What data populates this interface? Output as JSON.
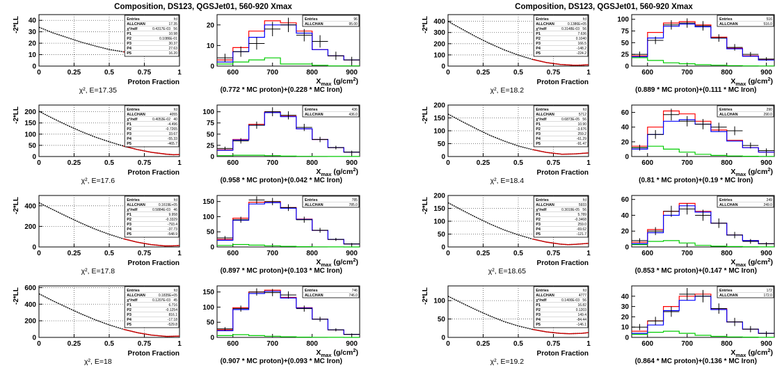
{
  "titles": [
    "Composition, DS123, QGSJet01, 560-920 Xmax",
    "Composition, DS123, QGSJet01, 560-920 Xmax"
  ],
  "colors": {
    "frame": "#000000",
    "fit": "#cc0000",
    "data": "#000000",
    "mc_total": "#ff0000",
    "mc_proton": "#0000ff",
    "mc_iron": "#00cc00",
    "grid": "#555555"
  },
  "llh_axis": {
    "xlabel": "Proton Fraction",
    "ylabel": "-2*LL",
    "xticks": [
      "0",
      "0.25",
      "0.5",
      "0.75",
      "1"
    ]
  },
  "xmax_axis": {
    "xlabel": "X",
    "xlabel_sub": "max",
    "xlabel_unit": "(g/cm",
    "xlabel_sup": "2",
    "xlabel_close": ")",
    "xticks": [
      "600",
      "700",
      "800",
      "900"
    ]
  },
  "xmax_bins": [
    560,
    600,
    640,
    680,
    720,
    760,
    800,
    840,
    880,
    920
  ],
  "stats_rows": {
    "entries": "Entries",
    "allchan": "ALLCHAN",
    "chi2": "χ²/ndf",
    "params": [
      "P1",
      "P2",
      "P3",
      "P4",
      "P5"
    ]
  },
  "chart_data": [
    {
      "type": "line",
      "panel": "llh",
      "column": "left",
      "row": 1,
      "ylim": [
        0,
        45
      ],
      "yticks": [
        "0",
        "10",
        "20",
        "30",
        "40"
      ],
      "x": [
        0,
        0.1,
        0.2,
        0.3,
        0.4,
        0.5,
        0.6,
        0.7,
        0.77,
        0.85,
        0.9,
        1.0
      ],
      "y": [
        34,
        29,
        25,
        21,
        17.6,
        14.5,
        12.5,
        11.2,
        11,
        11.3,
        12,
        14
      ],
      "caption": "χ², E=17.35",
      "stats": {
        "entries": "fcl",
        "allchan": "17.35",
        "chi2": "0.4317E-03",
        "ndf": "56",
        "p": [
          "10.98",
          "0.1086E-01",
          "30.37",
          "27.63",
          "16.20"
        ]
      }
    },
    {
      "type": "bar",
      "panel": "xmax",
      "column": "left",
      "row": 1,
      "ylim": [
        0,
        25
      ],
      "yticks": [
        "0",
        "10",
        "20"
      ],
      "data": [
        4,
        7,
        11,
        18,
        20,
        15,
        12,
        5,
        3
      ],
      "errors": [
        2,
        2.5,
        3,
        3.5,
        3.5,
        3,
        3,
        2,
        1.5
      ],
      "mc_total": [
        3,
        9,
        17,
        22,
        21,
        17,
        8,
        5,
        3
      ],
      "mc_proton": [
        2,
        7,
        14,
        20,
        20,
        16,
        8,
        5,
        3
      ],
      "mc_iron": [
        1,
        2,
        3,
        4,
        1,
        1,
        0.4,
        0.1,
        0.1
      ],
      "caption": "(0.772 * MC proton)+(0.228 * MC Iron)",
      "stats": {
        "entries": "96",
        "allchan": "95.00"
      }
    },
    {
      "type": "line",
      "panel": "llh",
      "column": "right",
      "row": 1,
      "ylim": [
        0,
        460
      ],
      "yticks": [
        "0",
        "100",
        "200",
        "300",
        "400"
      ],
      "x": [
        0,
        0.1,
        0.2,
        0.3,
        0.4,
        0.5,
        0.6,
        0.7,
        0.8,
        0.889,
        0.95,
        1.0
      ],
      "y": [
        400,
        330,
        262,
        200,
        145,
        98,
        60,
        32,
        14,
        8,
        9,
        12
      ],
      "caption": "χ², E=18.2",
      "stats": {
        "entries": "fcl",
        "allchan": "0.1386E+05",
        "chi2": "0.3148E-03",
        "ndf": "56",
        "p": [
          "7.636",
          "0.1040",
          "166.5",
          "-148.2",
          "-224.2"
        ]
      }
    },
    {
      "type": "bar",
      "panel": "xmax",
      "column": "right",
      "row": 1,
      "ylim": [
        0,
        110
      ],
      "yticks": [
        "0",
        "25",
        "50",
        "75",
        "100"
      ],
      "data": [
        25,
        55,
        88,
        92,
        86,
        60,
        40,
        25,
        15
      ],
      "errors": [
        6,
        8,
        10,
        10,
        10,
        8,
        7,
        5,
        4
      ],
      "mc_total": [
        22,
        72,
        92,
        95,
        88,
        62,
        38,
        22,
        14
      ],
      "mc_proton": [
        20,
        60,
        85,
        90,
        84,
        60,
        37,
        21,
        13
      ],
      "mc_iron": [
        18,
        12,
        7,
        5,
        3,
        2,
        1,
        0.5,
        0.3
      ],
      "caption": "(0.889 * MC proton)+(0.111 * MC Iron)",
      "stats": {
        "entries": "516",
        "allchan": "516.0"
      }
    },
    {
      "type": "line",
      "panel": "llh",
      "column": "left",
      "row": 2,
      "ylim": [
        0,
        230
      ],
      "yticks": [
        "0",
        "50",
        "100",
        "150",
        "200"
      ],
      "x": [
        0,
        0.1,
        0.2,
        0.3,
        0.4,
        0.5,
        0.6,
        0.7,
        0.8,
        0.9,
        0.958,
        1.0
      ],
      "y": [
        202,
        170,
        140,
        112,
        87,
        66,
        47,
        31,
        19,
        11,
        8,
        9
      ],
      "caption": "χ², E=17.6",
      "stats": {
        "entries": "fcl",
        "allchan": "4055",
        "chi2": "0.4053E-02",
        "ndf": "40",
        "p": [
          "-4.496",
          "-0.7265",
          "33.67",
          "-55.33",
          "-465.7"
        ]
      }
    },
    {
      "type": "bar",
      "panel": "xmax",
      "column": "left",
      "row": 2,
      "ylim": [
        0,
        115
      ],
      "yticks": [
        "0",
        "25",
        "50",
        "75",
        "100"
      ],
      "data": [
        18,
        35,
        70,
        100,
        92,
        65,
        38,
        20,
        10
      ],
      "errors": [
        4,
        6,
        8,
        10,
        9,
        8,
        6,
        4,
        3
      ],
      "mc_total": [
        15,
        38,
        72,
        100,
        90,
        62,
        38,
        20,
        10
      ],
      "mc_proton": [
        14,
        37,
        70,
        98,
        89,
        62,
        38,
        20,
        10
      ],
      "mc_iron": [
        2,
        3,
        3,
        2,
        1,
        0.5,
        0.3,
        0.2,
        0.1
      ],
      "caption": "(0.958 * MC proton)+(0.042 * MC Iron)",
      "stats": {
        "entries": "436",
        "allchan": "436.0"
      }
    },
    {
      "type": "line",
      "panel": "llh",
      "column": "right",
      "row": 2,
      "ylim": [
        0,
        200
      ],
      "yticks": [
        "0",
        "50",
        "100",
        "150",
        "200"
      ],
      "x": [
        0,
        0.1,
        0.2,
        0.3,
        0.4,
        0.5,
        0.6,
        0.7,
        0.81,
        0.9,
        1.0
      ],
      "y": [
        165,
        136,
        108,
        82,
        60,
        41,
        27,
        16,
        9,
        10,
        14
      ],
      "caption": "χ², E=18.4",
      "stats": {
        "entries": "fcl",
        "allchan": "5712",
        "chi2": "0.6873E-05",
        "ndf": "56",
        "p": [
          "10.90",
          "-3.676",
          "259.2",
          "-61.29",
          "-91.47"
        ]
      }
    },
    {
      "type": "bar",
      "panel": "xmax",
      "column": "right",
      "row": 2,
      "ylim": [
        0,
        70
      ],
      "yticks": [
        "0",
        "20",
        "40",
        "60"
      ],
      "data": [
        12,
        30,
        57,
        48,
        44,
        40,
        35,
        15,
        8
      ],
      "errors": [
        4,
        6,
        8,
        7,
        7,
        6,
        6,
        4,
        3
      ],
      "mc_total": [
        14,
        40,
        62,
        58,
        48,
        36,
        22,
        12,
        6
      ],
      "mc_proton": [
        10,
        30,
        48,
        50,
        44,
        34,
        21,
        12,
        6
      ],
      "mc_iron": [
        12,
        14,
        10,
        6,
        3,
        1.5,
        0.8,
        0.4,
        0.2
      ],
      "caption": "(0.81 * MC proton)+(0.19 * MC Iron)",
      "stats": {
        "entries": "290",
        "allchan": "290.0"
      }
    },
    {
      "type": "line",
      "panel": "llh",
      "column": "left",
      "row": 3,
      "ylim": [
        0,
        500
      ],
      "yticks": [
        "0",
        "200",
        "400"
      ],
      "x": [
        0,
        0.1,
        0.2,
        0.3,
        0.4,
        0.5,
        0.6,
        0.7,
        0.8,
        0.897,
        0.95,
        1.0
      ],
      "y": [
        430,
        362,
        295,
        232,
        173,
        122,
        80,
        46,
        22,
        10,
        11,
        14
      ],
      "caption": "χ², E=17.8",
      "stats": {
        "entries": "fcl",
        "allchan": "0.1619E+05",
        "chi2": "0.5884E-03",
        "ndf": "46",
        "p": [
          "9.958",
          "-0.3329",
          "-793.4",
          "-37.73",
          "-548.9"
        ]
      }
    },
    {
      "type": "bar",
      "panel": "xmax",
      "column": "left",
      "row": 3,
      "ylim": [
        0,
        170
      ],
      "yticks": [
        "0",
        "50",
        "100",
        "150"
      ],
      "data": [
        30,
        90,
        155,
        150,
        130,
        90,
        55,
        25,
        10
      ],
      "errors": [
        6,
        10,
        12,
        12,
        11,
        10,
        8,
        5,
        3
      ],
      "mc_total": [
        25,
        95,
        148,
        150,
        130,
        92,
        55,
        25,
        10
      ],
      "mc_proton": [
        22,
        88,
        142,
        146,
        128,
        91,
        55,
        25,
        10
      ],
      "mc_iron": [
        5,
        8,
        6,
        4,
        2,
        1,
        0.5,
        0.3,
        0.1
      ],
      "caption": "(0.897 * MC proton)+(0.103 * MC Iron)",
      "stats": {
        "entries": "785",
        "allchan": "785.0"
      }
    },
    {
      "type": "line",
      "panel": "llh",
      "column": "right",
      "row": 3,
      "ylim": [
        0,
        200
      ],
      "yticks": [
        "0",
        "50",
        "100",
        "150",
        "200"
      ],
      "x": [
        0,
        0.1,
        0.2,
        0.3,
        0.4,
        0.5,
        0.6,
        0.7,
        0.8,
        0.853,
        0.9,
        1.0
      ],
      "y": [
        172,
        143,
        115,
        89,
        66,
        47,
        31,
        19,
        11,
        9,
        10,
        14
      ],
      "caption": "χ², E=18.65",
      "stats": {
        "entries": "fcl",
        "allchan": "5933",
        "chi2": "0.3019E-05",
        "ndf": "56",
        "p": [
          "5.789",
          "-0.3468",
          "259.0",
          "-69.62",
          "-121.7"
        ]
      }
    },
    {
      "type": "bar",
      "panel": "xmax",
      "column": "right",
      "row": 3,
      "ylim": [
        0,
        65
      ],
      "yticks": [
        "0",
        "20",
        "40",
        "60"
      ],
      "data": [
        8,
        20,
        45,
        48,
        40,
        30,
        15,
        7,
        4
      ],
      "errors": [
        3,
        5,
        7,
        7,
        7,
        6,
        4,
        3,
        2
      ],
      "mc_total": [
        6,
        22,
        45,
        55,
        45,
        30,
        15,
        8,
        4
      ],
      "mc_proton": [
        4,
        18,
        40,
        52,
        44,
        30,
        15,
        8,
        4
      ],
      "mc_iron": [
        3,
        7,
        8,
        5,
        2,
        1,
        0.5,
        0.3,
        0.1
      ],
      "caption": "(0.853 * MC proton)+(0.147 * MC Iron)",
      "stats": {
        "entries": "249",
        "allchan": "249.0"
      }
    },
    {
      "type": "line",
      "panel": "llh",
      "column": "left",
      "row": 4,
      "ylim": [
        0,
        620
      ],
      "yticks": [
        "0",
        "200",
        "400",
        "600"
      ],
      "x": [
        0,
        0.1,
        0.2,
        0.3,
        0.4,
        0.5,
        0.6,
        0.7,
        0.8,
        0.907,
        0.95,
        1.0
      ],
      "y": [
        525,
        440,
        360,
        283,
        212,
        150,
        98,
        57,
        28,
        12,
        13,
        16
      ],
      "caption": "χ², E=18",
      "stats": {
        "entries": "fcl",
        "allchan": "0.1835E+05",
        "chi2": "0.1207E-03",
        "ndf": "45",
        "p": [
          "6.716",
          "-0.1254",
          "816.1",
          "-17.18",
          "-529.8"
        ]
      }
    },
    {
      "type": "bar",
      "panel": "xmax",
      "column": "left",
      "row": 4,
      "ylim": [
        0,
        170
      ],
      "yticks": [
        "0",
        "50",
        "100",
        "150"
      ],
      "data": [
        28,
        95,
        150,
        148,
        140,
        95,
        60,
        25,
        10
      ],
      "errors": [
        6,
        10,
        12,
        12,
        12,
        10,
        8,
        5,
        3
      ],
      "mc_total": [
        25,
        98,
        150,
        156,
        132,
        98,
        60,
        25,
        10
      ],
      "mc_proton": [
        22,
        92,
        145,
        152,
        130,
        97,
        60,
        25,
        10
      ],
      "mc_iron": [
        6,
        9,
        6,
        4,
        2,
        1,
        0.5,
        0.3,
        0.1
      ],
      "caption": "(0.907 * MC proton)+(0.093 * MC Iron)",
      "stats": {
        "entries": "746",
        "allchan": "746.0"
      }
    },
    {
      "type": "line",
      "panel": "llh",
      "column": "right",
      "row": 4,
      "ylim": [
        0,
        140
      ],
      "yticks": [
        "0",
        "50",
        "100"
      ],
      "x": [
        0,
        0.1,
        0.2,
        0.3,
        0.4,
        0.5,
        0.6,
        0.7,
        0.8,
        0.864,
        0.95,
        1.0
      ],
      "y": [
        112,
        93,
        75,
        58,
        43,
        31,
        22,
        15,
        11,
        10,
        11,
        13
      ],
      "caption": "χ², E=19.2",
      "stats": {
        "entries": "fcl",
        "allchan": "4777",
        "chi2": "0.1400E-03",
        "ndf": "56",
        "p": [
          "16.82",
          "0.1203",
          "149.4",
          "-84.44",
          "-146.1"
        ]
      }
    },
    {
      "type": "bar",
      "panel": "xmax",
      "column": "right",
      "row": 4,
      "ylim": [
        0,
        50
      ],
      "yticks": [
        "0",
        "10",
        "20",
        "30",
        "40"
      ],
      "data": [
        10,
        16,
        25,
        42,
        40,
        28,
        15,
        8,
        4
      ],
      "errors": [
        3,
        4,
        5,
        6,
        6,
        5,
        4,
        3,
        2
      ],
      "mc_total": [
        6,
        16,
        30,
        40,
        42,
        28,
        15,
        8,
        4
      ],
      "mc_proton": [
        4,
        12,
        26,
        36,
        40,
        27,
        15,
        8,
        4
      ],
      "mc_iron": [
        3,
        5,
        6,
        4,
        2,
        1,
        0.5,
        0.3,
        0.1
      ],
      "caption": "(0.864 * MC proton)+(0.136 * MC Iron)",
      "stats": {
        "entries": "172",
        "allchan": "172.0"
      }
    }
  ]
}
